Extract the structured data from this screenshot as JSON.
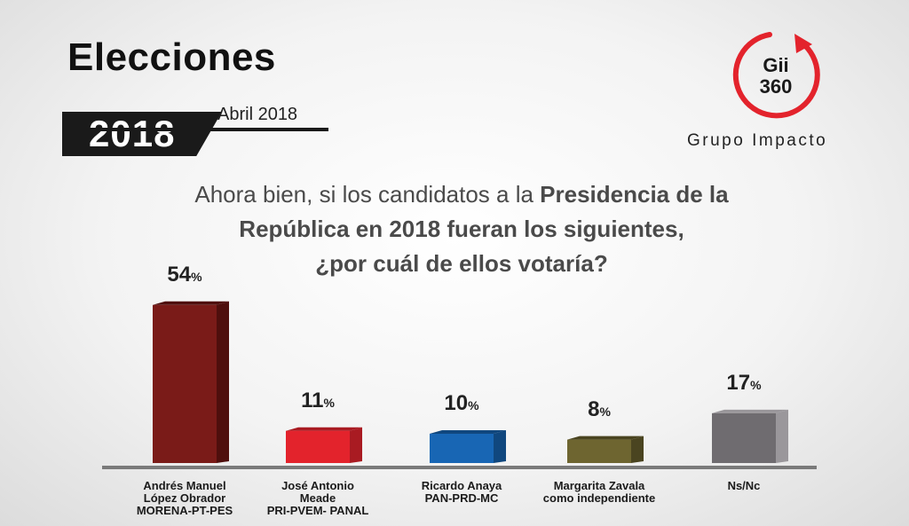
{
  "header": {
    "title": "Elecciones",
    "year": "2018",
    "month": "Abril 2018"
  },
  "logo": {
    "line1": "Gii",
    "line2": "360",
    "name": "Grupo Impacto"
  },
  "question": {
    "part1": "Ahora bien, si los candidatos a la ",
    "part2": "Presidencia de la República en 2018 fueran los siguientes,",
    "part3": "¿por cuál de ellos votaría?"
  },
  "chart_data": {
    "type": "bar",
    "title": "Ahora bien, si los candidatos a la Presidencia de la República en 2018 fueran los siguientes, ¿por cuál de ellos votaría?",
    "categories": [
      [
        "Andrés Manuel",
        "López Obrador",
        "MORENA-PT-PES"
      ],
      [
        "José Antonio",
        "Meade",
        "PRI-PVEM- PANAL"
      ],
      [
        "Ricardo Anaya",
        "PAN-PRD-MC"
      ],
      [
        "Margarita Zavala",
        "como independiente"
      ],
      [
        "Ns/Nc"
      ]
    ],
    "values": [
      54,
      11,
      10,
      8,
      17
    ],
    "unit": "%",
    "colors": [
      "#7a1b18",
      "#e3232c",
      "#1866b4",
      "#6e6530",
      "#6f6c70"
    ],
    "side_colors": [
      "#4f0f0d",
      "#a91b22",
      "#10477e",
      "#4a4420",
      "#9a979b"
    ],
    "ylim": [
      0,
      60
    ],
    "xlabel": "",
    "ylabel": ""
  }
}
